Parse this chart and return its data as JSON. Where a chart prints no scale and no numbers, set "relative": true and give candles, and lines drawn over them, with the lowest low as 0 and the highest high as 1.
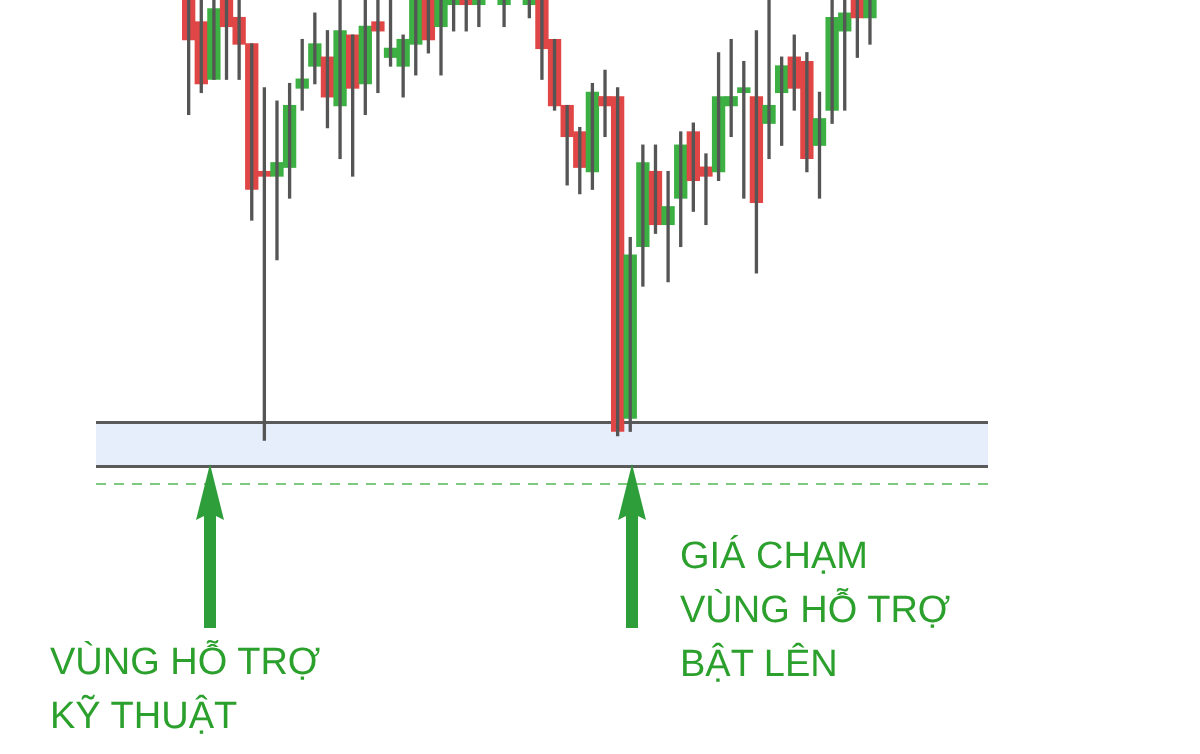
{
  "chart_data": {
    "type": "candlestick",
    "relative": true,
    "categories": [
      null,
      null,
      null,
      null,
      null,
      null,
      null,
      null,
      null,
      null,
      null,
      null,
      null,
      null,
      null,
      null,
      null,
      null,
      null,
      null,
      null,
      null,
      null,
      null,
      null,
      null,
      null,
      null,
      null,
      null,
      null,
      null,
      null,
      null,
      null,
      null,
      null,
      null,
      null,
      null,
      null,
      null,
      null,
      null,
      null,
      null,
      null,
      null,
      null,
      null,
      null,
      null,
      null,
      null,
      null
    ],
    "ohlc": [
      [
        1,
        1,
        0.74,
        0.91
      ],
      [
        0.95,
        1,
        0.79,
        0.81
      ],
      [
        0.82,
        1,
        0.82,
        0.98
      ],
      [
        1,
        1,
        0.82,
        0.94
      ],
      [
        0.96,
        1,
        0.82,
        0.9
      ],
      [
        0.9,
        0.9,
        0.5,
        0.57
      ],
      [
        0.61,
        0.8,
        0,
        0.6
      ],
      [
        0.6,
        0.77,
        0.41,
        0.63
      ],
      [
        0.62,
        0.81,
        0.55,
        0.76
      ],
      [
        0.8,
        0.91,
        0.75,
        0.82
      ],
      [
        0.85,
        0.97,
        0.81,
        0.9
      ],
      [
        0.87,
        0.93,
        0.71,
        0.78
      ],
      [
        0.76,
        1,
        0.64,
        0.93
      ],
      [
        0.92,
        0.92,
        0.6,
        0.8
      ],
      [
        0.81,
        1,
        0.74,
        0.94
      ],
      [
        0.95,
        1,
        0.79,
        0.93
      ],
      [
        0.87,
        1,
        0.85,
        0.89
      ],
      [
        0.85,
        0.92,
        0.78,
        0.91
      ],
      [
        0.9,
        1,
        0.83,
        1
      ],
      [
        1,
        1,
        0.88,
        0.91
      ],
      [
        0.94,
        1,
        0.83,
        1
      ],
      [
        0.99,
        1,
        0.93,
        1
      ],
      [
        1,
        1,
        0.93,
        0.99
      ],
      [
        0.99,
        1,
        0.94,
        1
      ],
      null,
      [
        0.99,
        1,
        0.94,
        1
      ],
      null,
      [
        0.99,
        1,
        0.96,
        1
      ],
      [
        1,
        1,
        0.82,
        0.89
      ],
      [
        0.91,
        0.91,
        0.75,
        0.76
      ],
      [
        0.76,
        0.76,
        0.58,
        0.69
      ],
      [
        0.7,
        0.71,
        0.56,
        0.62
      ],
      [
        0.61,
        0.81,
        0.57,
        0.79
      ],
      [
        0.78,
        0.84,
        0.69,
        0.76
      ],
      [
        0.78,
        0.8,
        0.01,
        0.02
      ],
      [
        0.05,
        0.46,
        0.02,
        0.42
      ],
      [
        0.44,
        0.67,
        0.35,
        0.63
      ],
      [
        0.61,
        0.67,
        0.47,
        0.49
      ],
      [
        0.49,
        0.61,
        0.36,
        0.53
      ],
      [
        0.55,
        0.7,
        0.44,
        0.67
      ],
      [
        0.7,
        0.72,
        0.52,
        0.59
      ],
      [
        0.62,
        0.65,
        0.49,
        0.6
      ],
      [
        0.61,
        0.88,
        0.59,
        0.78
      ],
      [
        0.76,
        0.91,
        0.69,
        0.78
      ],
      [
        0.79,
        0.86,
        0.55,
        0.8
      ],
      [
        0.78,
        0.93,
        0.38,
        0.54
      ],
      [
        0.72,
        1,
        0.64,
        0.76
      ],
      [
        0.79,
        0.87,
        0.67,
        0.85
      ],
      [
        0.87,
        0.92,
        0.75,
        0.8
      ],
      [
        0.86,
        0.88,
        0.61,
        0.64
      ],
      [
        0.67,
        0.79,
        0.55,
        0.73
      ],
      [
        0.75,
        1,
        0.72,
        0.96
      ],
      [
        0.93,
        1,
        0.75,
        0.97
      ],
      [
        1,
        1,
        0.87,
        0.96
      ],
      [
        0.96,
        1,
        0.9,
        1
      ]
    ],
    "colors": [
      "#e04646",
      "#e04646",
      "#3cb043",
      "#e04646",
      "#e04646",
      "#e04646",
      "#e04646",
      "#3cb043",
      "#3cb043",
      "#3cb043",
      "#3cb043",
      "#e04646",
      "#3cb043",
      "#e04646",
      "#3cb043",
      "#e04646",
      "#3cb043",
      "#3cb043",
      "#3cb043",
      "#e04646",
      "#3cb043",
      "#3cb043",
      "#e04646",
      "#3cb043",
      null,
      "#3cb043",
      null,
      "#3cb043",
      "#e04646",
      "#e04646",
      "#e04646",
      "#e04646",
      "#3cb043",
      "#e04646",
      "#e04646",
      "#3cb043",
      "#3cb043",
      "#e04646",
      "#3cb043",
      "#3cb043",
      "#e04646",
      "#e04646",
      "#3cb043",
      "#3cb043",
      "#3cb043",
      "#e04646",
      "#3cb043",
      "#3cb043",
      "#e04646",
      "#e04646",
      "#3cb043",
      "#3cb043",
      "#3cb043",
      "#e04646",
      "#3cb043"
    ],
    "bands": [
      {
        "axis": "y",
        "from": -0.06,
        "to": 0.04,
        "color": "#e6edfb"
      }
    ],
    "ref_lines": [
      {
        "axis": "y",
        "value": 0.04,
        "color": "#5a5a5a",
        "line_style": "solid"
      },
      {
        "axis": "y",
        "value": -0.06,
        "color": "#5a5a5a",
        "line_style": "solid"
      },
      {
        "axis": "y",
        "value": -0.1,
        "color": "#7fc97f",
        "line_style": "dashed"
      }
    ],
    "annotations": [
      "VÙNG HỖ TRỢ\nKỸ THUẬT",
      "GIÁ CHẠM\nVÙNG HỖ TRỢ\nBẬT LÊN"
    ]
  }
}
